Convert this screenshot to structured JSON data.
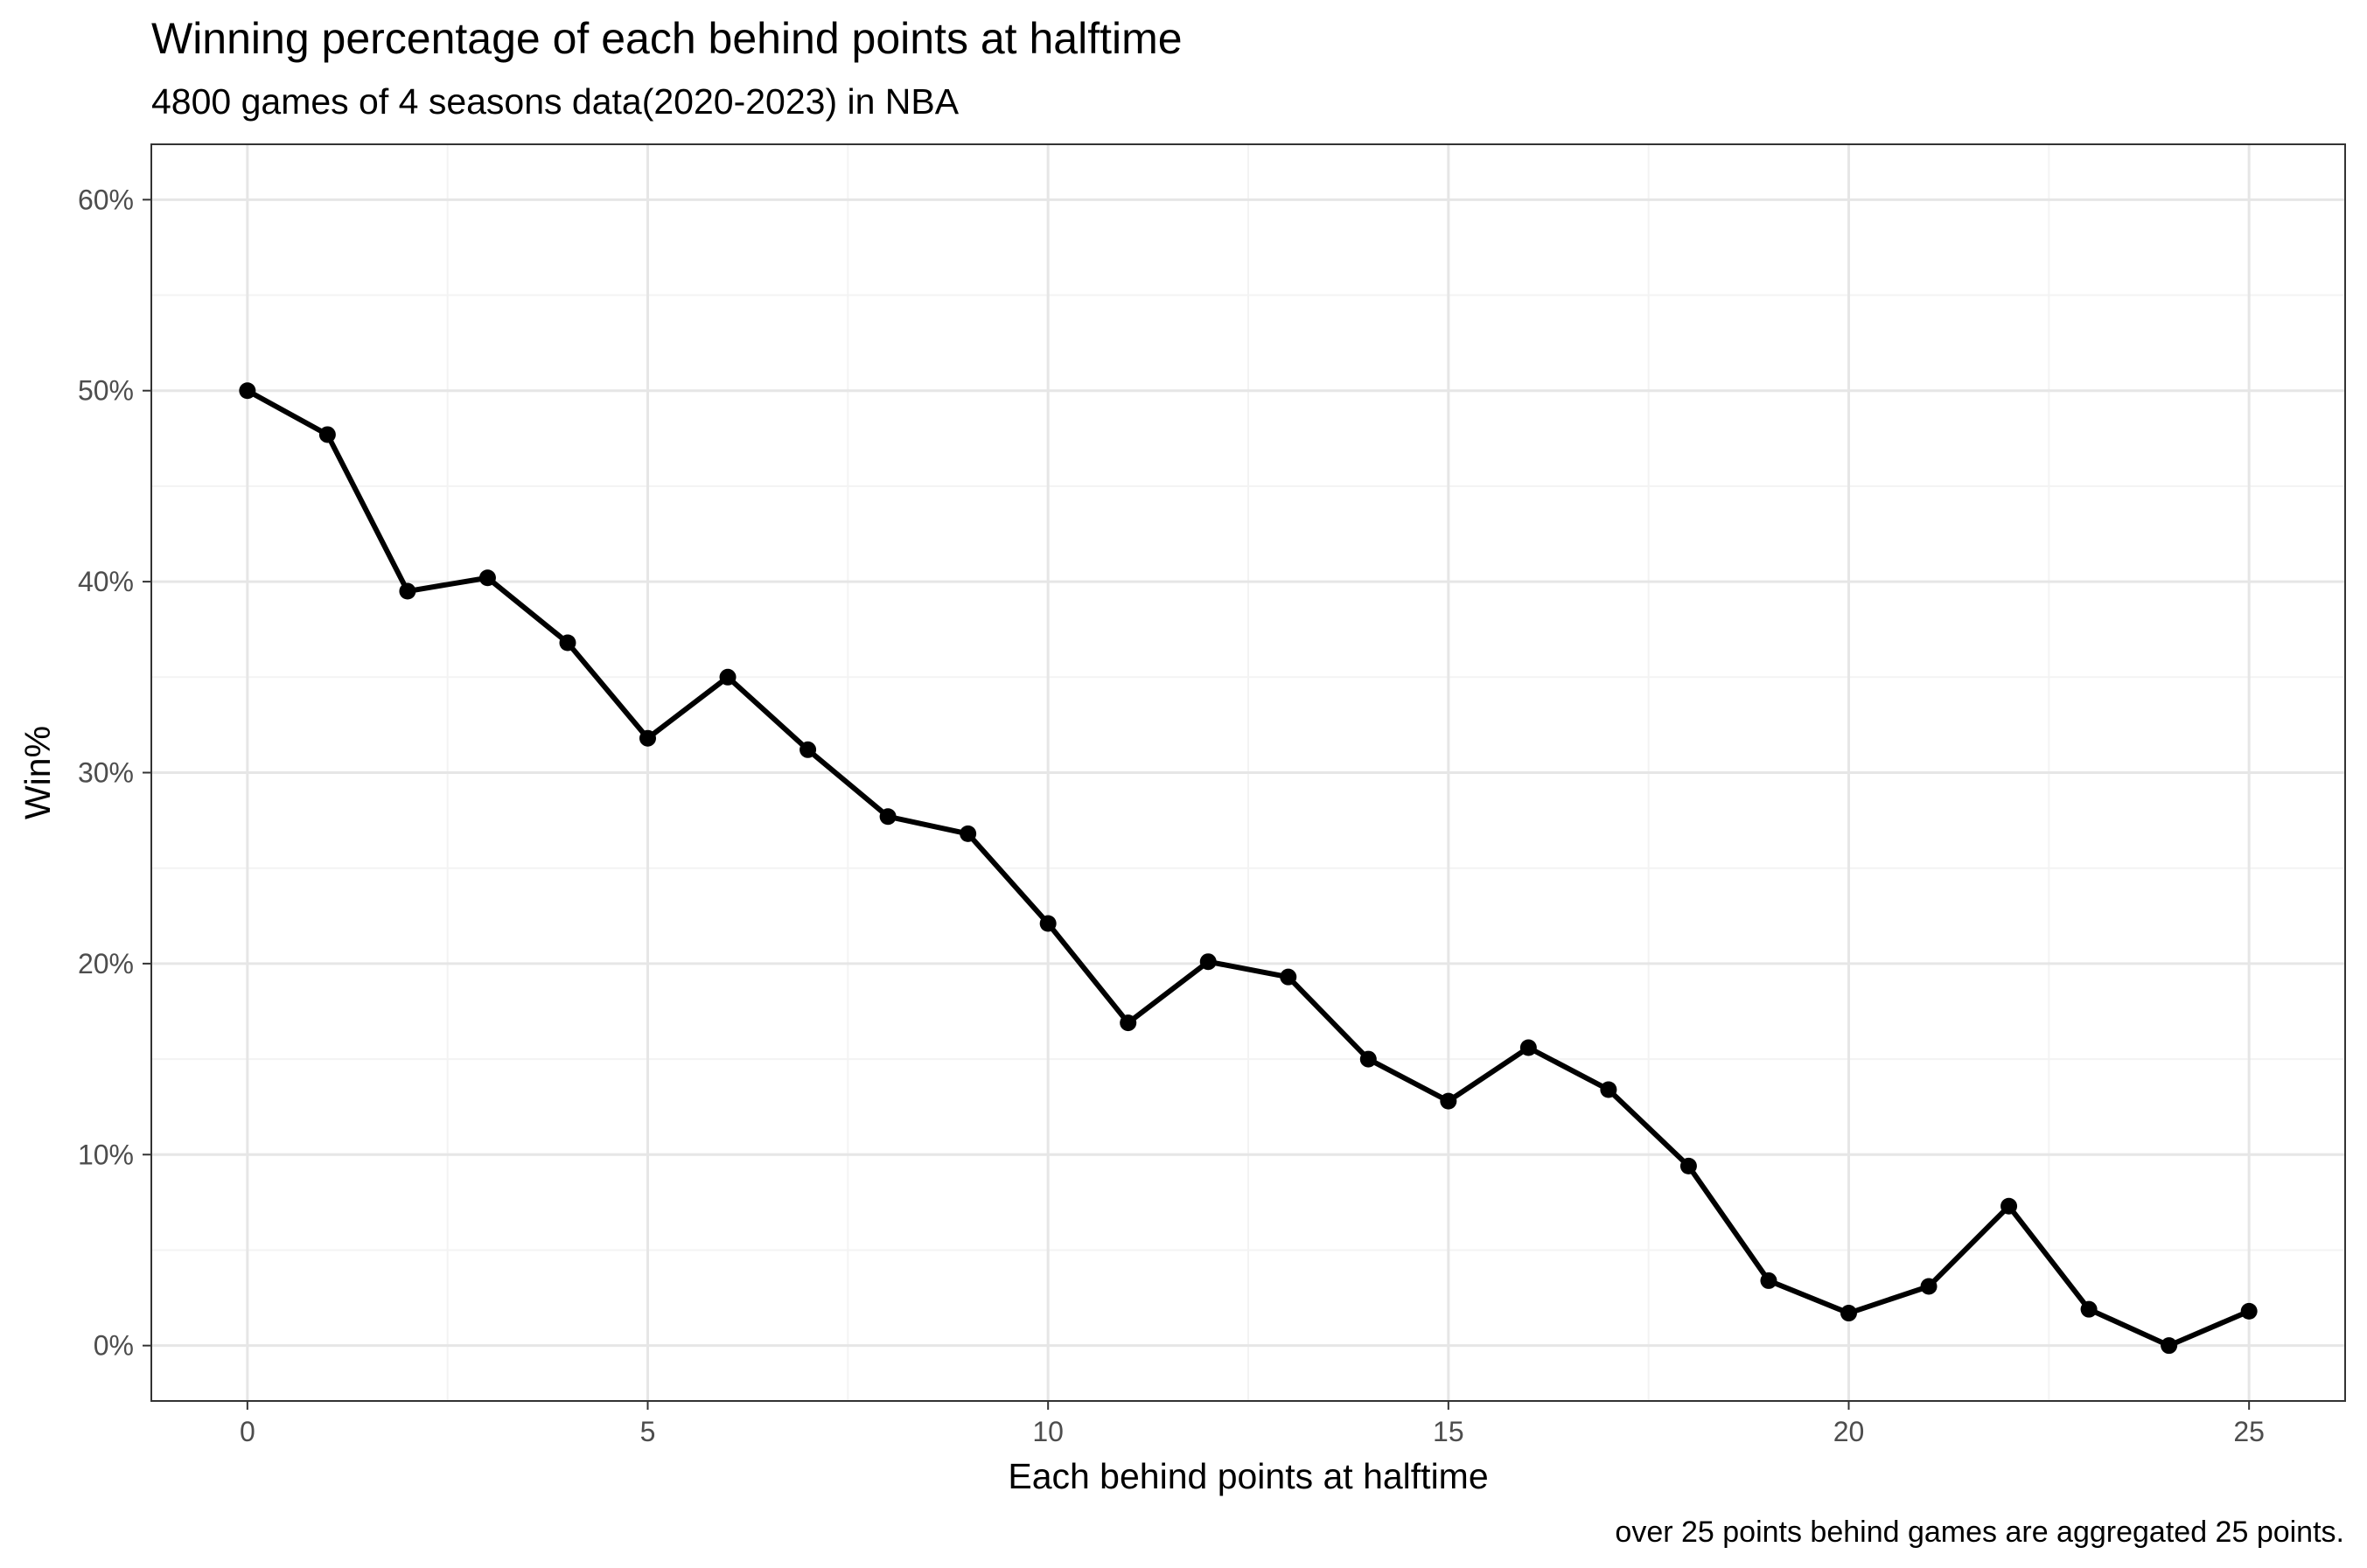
{
  "chart_data": {
    "type": "line",
    "title": "Winning percentage of each behind points at halftime",
    "subtitle": "4800 games of 4 seasons data(2020-2023) in NBA",
    "caption": "over 25 points behind games are aggregated 25 points.",
    "xlabel": "Each behind points at halftime",
    "ylabel": "Win%",
    "x": [
      0,
      1,
      2,
      3,
      4,
      5,
      6,
      7,
      8,
      9,
      10,
      11,
      12,
      13,
      14,
      15,
      16,
      17,
      18,
      19,
      20,
      21,
      22,
      23,
      24,
      25
    ],
    "series": [
      {
        "values": [
          50.0,
          47.7,
          39.5,
          40.2,
          36.8,
          31.8,
          35.0,
          31.2,
          27.7,
          26.8,
          22.1,
          16.9,
          20.1,
          19.3,
          15.0,
          12.8,
          15.6,
          13.4,
          9.4,
          3.4,
          1.7,
          3.1,
          7.3,
          1.9,
          0.0,
          1.8
        ],
        "color": "#000000"
      }
    ],
    "xlim": [
      -1.2,
      26.2
    ],
    "ylim": [
      -2.9,
      62.9
    ],
    "xticks": [
      0,
      5,
      10,
      15,
      20,
      25
    ],
    "xtick_labels": [
      "0",
      "5",
      "10",
      "15",
      "20",
      "25"
    ],
    "yticks": [
      0,
      10,
      20,
      30,
      40,
      50,
      60
    ],
    "ytick_labels": [
      "0%",
      "10%",
      "20%",
      "30%",
      "40%",
      "50%",
      "60%"
    ],
    "grid": true,
    "legend": "none"
  }
}
